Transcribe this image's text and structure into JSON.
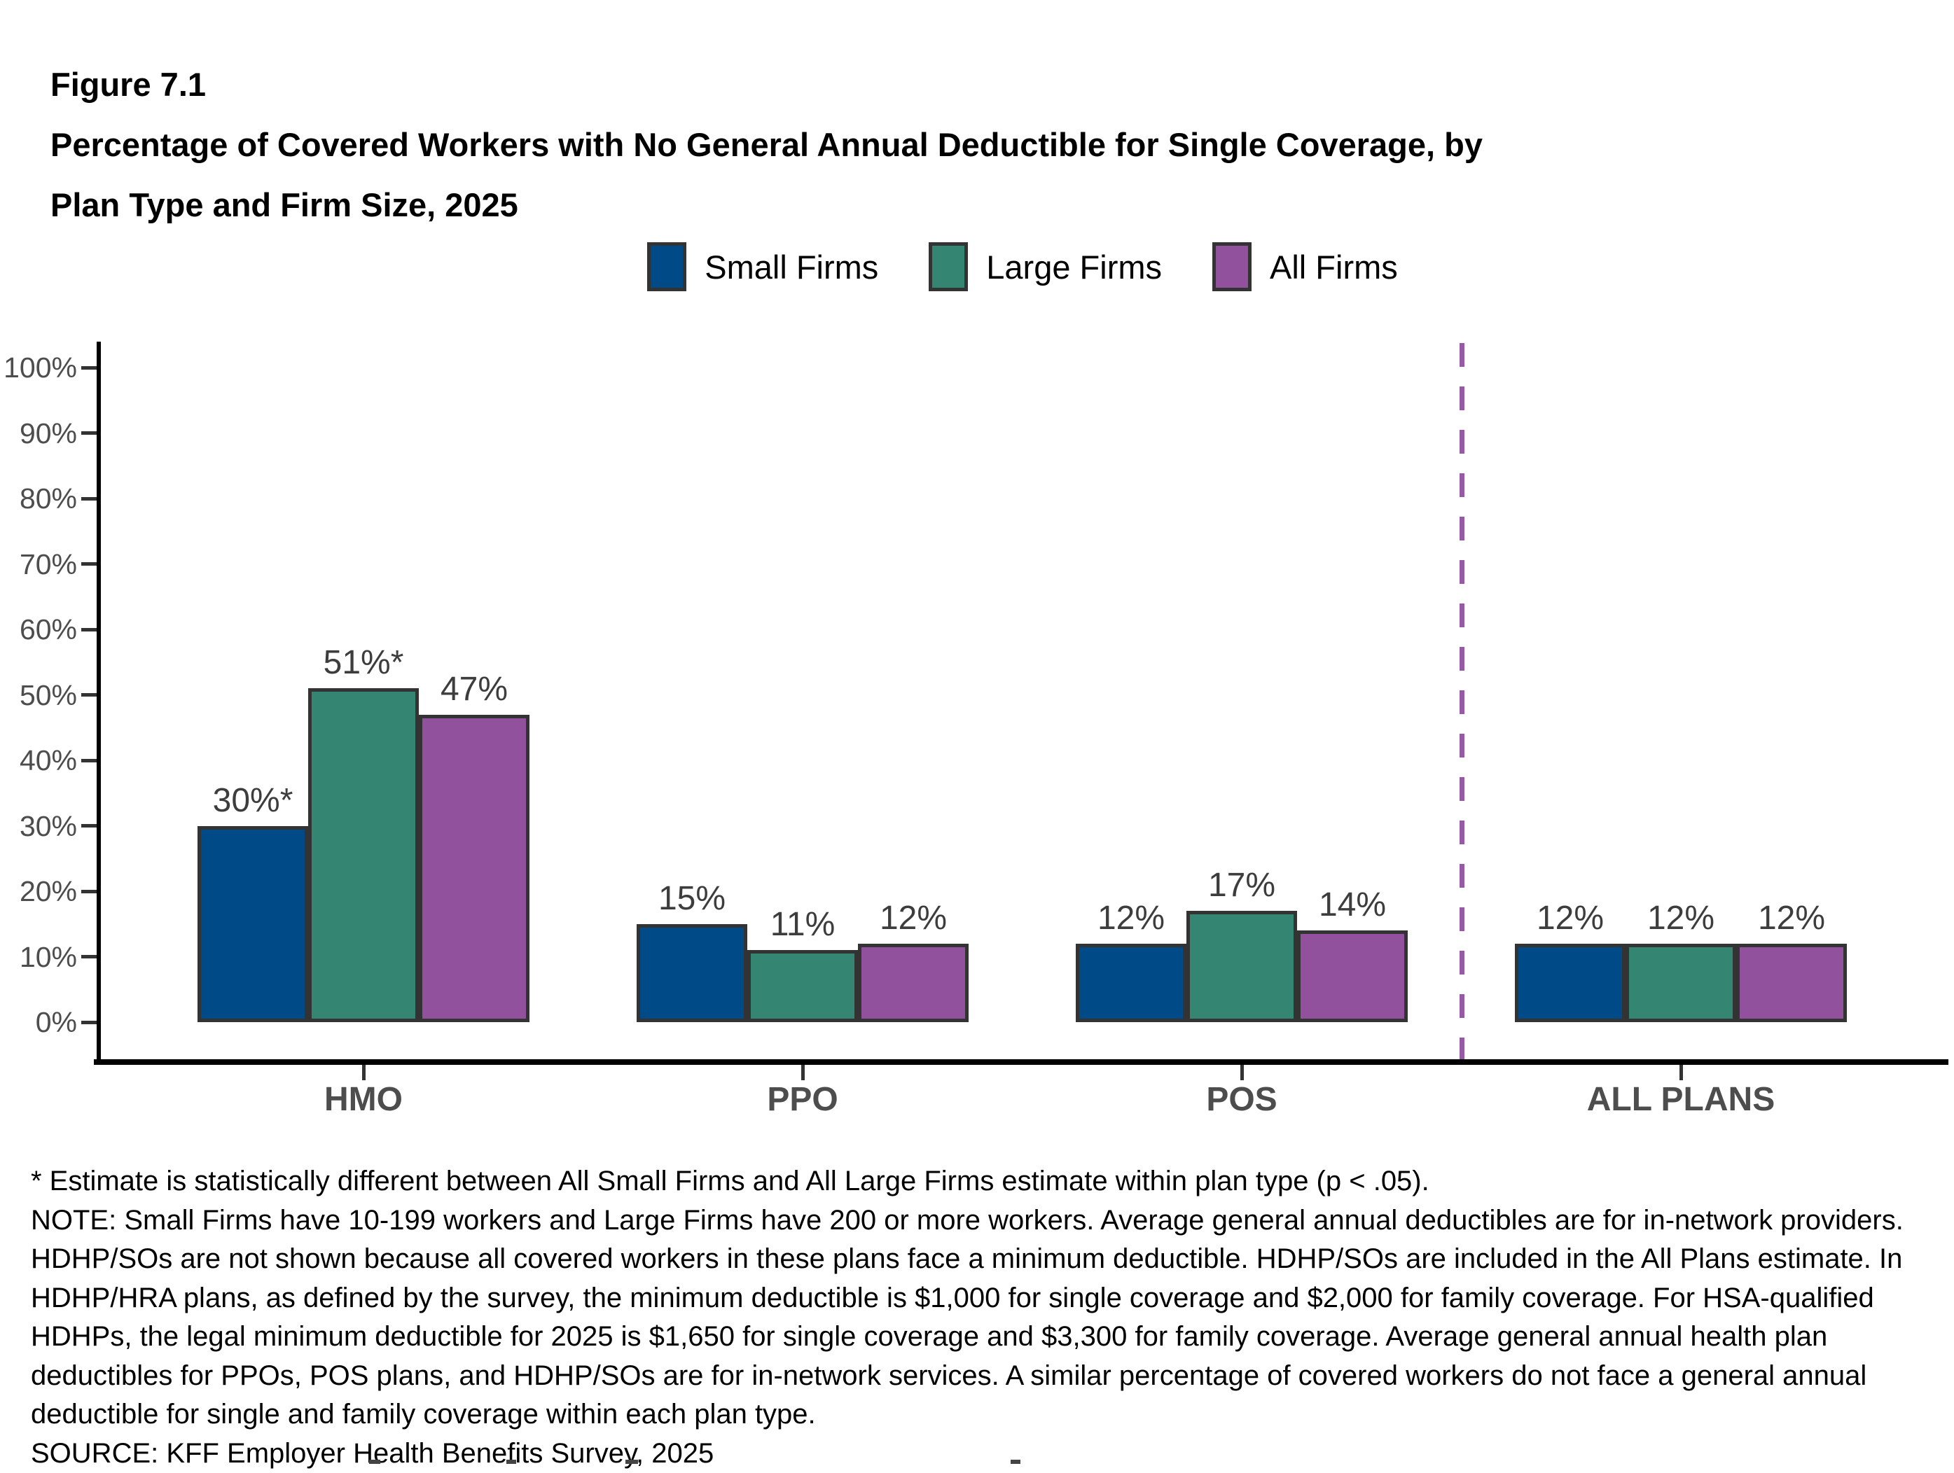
{
  "figure_label": "Figure 7.1",
  "title_lines": [
    "Percentage of Covered Workers with No General Annual Deductible for Single Coverage, by",
    "Plan Type and Firm Size, 2025"
  ],
  "legend": {
    "items": [
      {
        "label": "Small Firms",
        "color": "#004B87"
      },
      {
        "label": "Large Firms",
        "color": "#348571"
      },
      {
        "label": "All Firms",
        "color": "#92519D"
      }
    ]
  },
  "chart_data": {
    "type": "bar",
    "title": "Figure 7.1 Percentage of Covered Workers with No General Annual Deductible for Single Coverage, by Plan Type and Firm Size, 2025",
    "categories": [
      "HMO",
      "PPO",
      "POS",
      "ALL PLANS"
    ],
    "series": [
      {
        "name": "Small Firms",
        "color": "#004B87",
        "values": [
          30,
          15,
          12,
          12
        ],
        "labels": [
          "30%*",
          "15%",
          "12%",
          "12%"
        ]
      },
      {
        "name": "Large Firms",
        "color": "#348571",
        "values": [
          51,
          11,
          17,
          12
        ],
        "labels": [
          "51%*",
          "11%",
          "17%",
          "12%"
        ]
      },
      {
        "name": "All Firms",
        "color": "#92519D",
        "values": [
          47,
          12,
          14,
          12
        ],
        "labels": [
          "47%",
          "12%",
          "14%",
          "12%"
        ]
      }
    ],
    "xlabel": "",
    "ylabel": "",
    "ylim": [
      0,
      100
    ],
    "yticks": [
      "0%",
      "10%",
      "20%",
      "30%",
      "40%",
      "50%",
      "60%",
      "70%",
      "80%",
      "90%",
      "100%"
    ],
    "grid": false,
    "legend_position": "top",
    "separator": {
      "before_category": "ALL PLANS",
      "style": "dashed",
      "color": "#9659A5"
    }
  },
  "footnotes": {
    "asterisk_line": "* Estimate is statistically different between All Small Firms and All Large Firms estimate within plan type (p < .05).",
    "note_lines": [
      "NOTE: Small Firms have 10-199 workers and Large Firms have 200 or more workers. Average general annual deductibles are for in-network providers.",
      "HDHP/SOs are not shown because all covered workers in these plans face a minimum deductible. HDHP/SOs are included in the All Plans estimate. In",
      "HDHP/HRA plans, as defined by the survey, the minimum deductible is $1,000 for single coverage and $2,000 for family coverage. For HSA-qualified",
      "HDHPs, the legal minimum deductible for 2025 is $1,650 for single coverage and $3,300 for family coverage. Average general annual health plan",
      "deductibles for PPOs, POS plans, and HDHP/SOs are for in-network services. A similar percentage of covered workers do not face a general annual",
      "deductible for single and family coverage within each plan type."
    ],
    "source_line": "SOURCE: KFF Employer Health Benefits Survey, 2025"
  }
}
